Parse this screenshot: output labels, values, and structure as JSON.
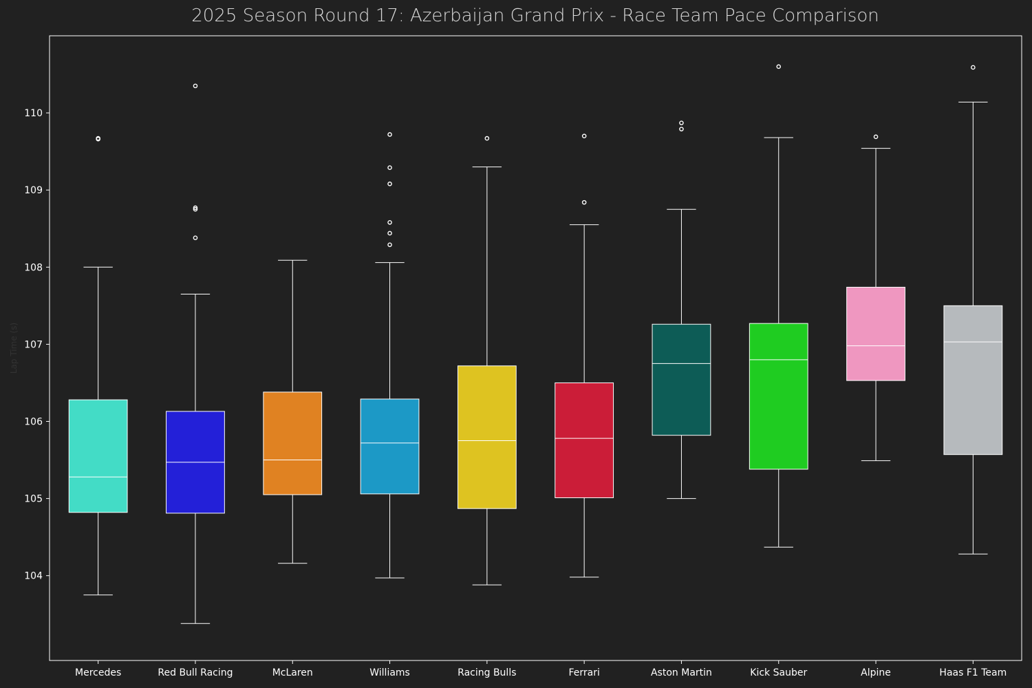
{
  "chart_data": {
    "type": "box",
    "title": "2025 Season Round 17: Azerbaijan Grand Prix - Race Team Pace Comparison",
    "ylabel": "Lap Time (s)",
    "xlabel": "",
    "ylim": [
      102.9,
      111.0
    ],
    "yticks": [
      104,
      105,
      106,
      107,
      108,
      109,
      110
    ],
    "grid": false,
    "categories": [
      "Mercedes",
      "Red Bull Racing",
      "McLaren",
      "Williams",
      "Racing Bulls",
      "Ferrari",
      "Aston Martin",
      "Kick Sauber",
      "Alpine",
      "Haas F1 Team"
    ],
    "boxes": [
      {
        "team": "Mercedes",
        "color": "#43DCC6",
        "whisker_low": 103.75,
        "q1": 104.82,
        "median": 105.28,
        "q3": 106.28,
        "whisker_high": 108.0,
        "outliers": [
          109.66,
          109.67
        ]
      },
      {
        "team": "Red Bull Racing",
        "color": "#2320D8",
        "whisker_low": 103.38,
        "q1": 104.81,
        "median": 105.47,
        "q3": 106.13,
        "whisker_high": 107.65,
        "outliers": [
          108.38,
          108.75,
          108.77,
          110.35
        ]
      },
      {
        "team": "McLaren",
        "color": "#E08222",
        "whisker_low": 104.16,
        "q1": 105.05,
        "median": 105.5,
        "q3": 106.38,
        "whisker_high": 108.09,
        "outliers": []
      },
      {
        "team": "Williams",
        "color": "#1C99C6",
        "whisker_low": 103.97,
        "q1": 105.06,
        "median": 105.72,
        "q3": 106.29,
        "whisker_high": 108.06,
        "outliers": [
          108.29,
          108.44,
          108.58,
          109.08,
          109.29,
          109.72
        ]
      },
      {
        "team": "Racing Bulls",
        "color": "#DEC321",
        "whisker_low": 103.88,
        "q1": 104.87,
        "median": 105.75,
        "q3": 106.72,
        "whisker_high": 109.3,
        "outliers": [
          109.67
        ]
      },
      {
        "team": "Ferrari",
        "color": "#CB1D38",
        "whisker_low": 103.98,
        "q1": 105.01,
        "median": 105.78,
        "q3": 106.5,
        "whisker_high": 108.55,
        "outliers": [
          108.84,
          109.7
        ]
      },
      {
        "team": "Aston Martin",
        "color": "#0D5C56",
        "whisker_low": 105.0,
        "q1": 105.82,
        "median": 106.75,
        "q3": 107.26,
        "whisker_high": 108.75,
        "outliers": [
          109.79,
          109.87
        ]
      },
      {
        "team": "Kick Sauber",
        "color": "#1FCC21",
        "whisker_low": 104.37,
        "q1": 105.38,
        "median": 106.8,
        "q3": 107.27,
        "whisker_high": 109.68,
        "outliers": [
          110.6
        ]
      },
      {
        "team": "Alpine",
        "color": "#EF97C0",
        "whisker_low": 105.49,
        "q1": 106.53,
        "median": 106.98,
        "q3": 107.74,
        "whisker_high": 109.54,
        "outliers": [
          109.69
        ]
      },
      {
        "team": "Haas F1 Team",
        "color": "#B6BABD",
        "whisker_low": 104.28,
        "q1": 105.57,
        "median": 107.03,
        "q3": 107.5,
        "whisker_high": 110.14,
        "outliers": [
          110.59
        ]
      }
    ]
  }
}
